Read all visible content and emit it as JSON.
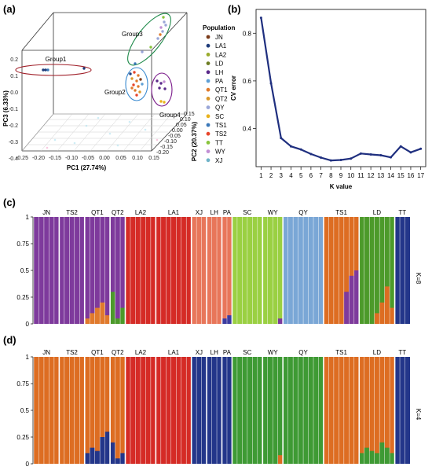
{
  "panels": {
    "a": "(a)",
    "b": "(b)",
    "c": "(c)",
    "d": "(d)"
  },
  "chart_data": [
    {
      "panel": "a",
      "type": "scatter",
      "axes": {
        "x": {
          "label": "PC1 (27.74%)",
          "ticks": [
            "-0.25",
            "-0.20",
            "-0.15",
            "-0.10",
            "-0.05",
            "0.00",
            "0.05",
            "0.10",
            "0.15"
          ]
        },
        "y": {
          "label": "PC2 (20.37%)",
          "ticks": [
            "-0.20",
            "-0.15",
            "-0.10",
            "-0.05",
            "0.00",
            "0.05",
            "0.10",
            "0.15"
          ]
        },
        "z": {
          "label": "PC3 (6.33%)",
          "ticks": [
            "-0.4",
            "-0.3",
            "-0.2",
            "-0.1",
            "0.0",
            "0.1",
            "0.2"
          ]
        }
      },
      "legend": {
        "title": "Population",
        "items": [
          {
            "name": "JN",
            "color": "#7b3b1a"
          },
          {
            "name": "LA1",
            "color": "#1f3c7a"
          },
          {
            "name": "LA2",
            "color": "#9aab2c"
          },
          {
            "name": "LD",
            "color": "#6d7d23"
          },
          {
            "name": "LH",
            "color": "#5a2a8a"
          },
          {
            "name": "PA",
            "color": "#5e9fd5"
          },
          {
            "name": "QT1",
            "color": "#e07a2c"
          },
          {
            "name": "QT2",
            "color": "#d9982b"
          },
          {
            "name": "QY",
            "color": "#9aa6d8"
          },
          {
            "name": "SC",
            "color": "#e9b21c"
          },
          {
            "name": "TS1",
            "color": "#3b78b8"
          },
          {
            "name": "TS2",
            "color": "#e8452b"
          },
          {
            "name": "TT",
            "color": "#89c43c"
          },
          {
            "name": "WY",
            "color": "#c28fd4"
          },
          {
            "name": "XJ",
            "color": "#6fb3c8"
          }
        ]
      },
      "groups": [
        "Group1",
        "Group2",
        "Group3",
        "Group4"
      ]
    },
    {
      "panel": "b",
      "type": "line",
      "x": [
        1,
        2,
        3,
        4,
        5,
        6,
        7,
        8,
        9,
        10,
        11,
        12,
        13,
        14,
        15,
        16,
        17
      ],
      "values": [
        0.865,
        0.59,
        0.36,
        0.325,
        0.312,
        0.293,
        0.278,
        0.266,
        0.268,
        0.274,
        0.295,
        0.291,
        0.288,
        0.279,
        0.325,
        0.3,
        0.315
      ],
      "xlabel": "K value",
      "ylabel": "CV error",
      "yticks": [
        0.4,
        0.6,
        0.8
      ],
      "ylim": [
        0.24,
        0.9
      ],
      "color": "#1f2f7f"
    },
    {
      "panel": "c",
      "type": "bar",
      "stacked": true,
      "k_label": "K=8",
      "yticks": [
        "0",
        "0.25",
        "0.5",
        "0.75",
        "1"
      ],
      "populations": [
        {
          "name": "JN",
          "n": 5,
          "base": "#7e3a9c",
          "mix": []
        },
        {
          "name": "TS2",
          "n": 5,
          "base": "#7e3a9c",
          "mix": []
        },
        {
          "name": "QT1",
          "n": 5,
          "base": "#7e3a9c",
          "mix": [
            {
              "color": "#e07a2c",
              "frac": [
                0.05,
                0.1,
                0.15,
                0.2,
                0.08
              ]
            }
          ]
        },
        {
          "name": "QT2",
          "n": 3,
          "base": "#7e3a9c",
          "mix": [
            {
              "color": "#4c9a2a",
              "frac": [
                0.3,
                0.05,
                0.15
              ]
            }
          ]
        },
        {
          "name": "LA2",
          "n": 6,
          "base": "#d52b26",
          "mix": []
        },
        {
          "name": "LA1",
          "n": 7,
          "base": "#d52b26",
          "mix": []
        },
        {
          "name": "XJ",
          "n": 3,
          "base": "#e8765a",
          "mix": []
        },
        {
          "name": "LH",
          "n": 3,
          "base": "#e8765a",
          "mix": []
        },
        {
          "name": "PA",
          "n": 2,
          "base": "#e8765a",
          "mix": [
            {
              "color": "#3b3ba0",
              "frac": [
                0.05,
                0.08
              ]
            }
          ]
        },
        {
          "name": "SC",
          "n": 6,
          "base": "#9ad042",
          "mix": []
        },
        {
          "name": "WY",
          "n": 4,
          "base": "#9ad042",
          "mix": [
            {
              "color": "#7e3a9c",
              "frac": [
                0,
                0,
                0,
                0.05
              ]
            }
          ]
        },
        {
          "name": "QY",
          "n": 8,
          "base": "#7aa7d6",
          "mix": []
        },
        {
          "name": "TS1",
          "n": 7,
          "base": "#dd6d22",
          "mix": [
            {
              "color": "#7e3a9c",
              "frac": [
                0,
                0,
                0,
                0,
                0.3,
                0.45,
                0.5
              ]
            }
          ]
        },
        {
          "name": "LD",
          "n": 7,
          "base": "#4c9a2a",
          "mix": [
            {
              "color": "#dd6d22",
              "frac": [
                0,
                0,
                0,
                0.1,
                0.2,
                0.35,
                0.15
              ]
            }
          ]
        },
        {
          "name": "TT",
          "n": 3,
          "base": "#23368a",
          "mix": []
        }
      ]
    },
    {
      "panel": "d",
      "type": "bar",
      "stacked": true,
      "k_label": "K=4",
      "yticks": [
        "0",
        "0.25",
        "0.5",
        "0.75",
        "1"
      ],
      "populations": [
        {
          "name": "JN",
          "n": 5,
          "base": "#dd6d22",
          "mix": []
        },
        {
          "name": "TS2",
          "n": 5,
          "base": "#dd6d22",
          "mix": []
        },
        {
          "name": "QT1",
          "n": 5,
          "base": "#dd6d22",
          "mix": [
            {
              "color": "#23368a",
              "frac": [
                0.1,
                0.15,
                0.12,
                0.25,
                0.3
              ]
            }
          ]
        },
        {
          "name": "QT2",
          "n": 3,
          "base": "#dd6d22",
          "mix": [
            {
              "color": "#23368a",
              "frac": [
                0.2,
                0.05,
                0.1
              ]
            }
          ]
        },
        {
          "name": "LA2",
          "n": 6,
          "base": "#d52b26",
          "mix": []
        },
        {
          "name": "LA1",
          "n": 7,
          "base": "#d52b26",
          "mix": []
        },
        {
          "name": "XJ",
          "n": 3,
          "base": "#23368a",
          "mix": []
        },
        {
          "name": "LH",
          "n": 3,
          "base": "#23368a",
          "mix": []
        },
        {
          "name": "PA",
          "n": 2,
          "base": "#23368a",
          "mix": []
        },
        {
          "name": "SC",
          "n": 6,
          "base": "#3e9a34",
          "mix": []
        },
        {
          "name": "WY",
          "n": 4,
          "base": "#3e9a34",
          "mix": [
            {
              "color": "#dd6d22",
              "frac": [
                0,
                0,
                0,
                0.08
              ]
            }
          ]
        },
        {
          "name": "QY",
          "n": 8,
          "base": "#3e9a34",
          "mix": []
        },
        {
          "name": "TS1",
          "n": 7,
          "base": "#dd6d22",
          "mix": []
        },
        {
          "name": "LD",
          "n": 7,
          "base": "#dd6d22",
          "mix": [
            {
              "color": "#3e9a34",
              "frac": [
                0.1,
                0.15,
                0.12,
                0.1,
                0.2,
                0.15,
                0.1
              ]
            }
          ]
        },
        {
          "name": "TT",
          "n": 3,
          "base": "#23368a",
          "mix": []
        }
      ]
    }
  ]
}
